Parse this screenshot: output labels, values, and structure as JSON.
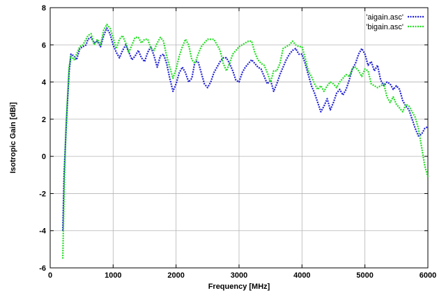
{
  "chart_data": {
    "type": "line",
    "title": "",
    "xlabel": "Frequency [MHz]",
    "ylabel": "Isotropic Gain [dBi]",
    "xlim": [
      0,
      6000
    ],
    "ylim": [
      -6,
      8
    ],
    "xticks": [
      0,
      1000,
      2000,
      3000,
      4000,
      5000,
      6000
    ],
    "yticks": [
      -6,
      -4,
      -2,
      0,
      2,
      4,
      6,
      8
    ],
    "grid": true,
    "legend_position": "top-right",
    "series": [
      {
        "name": "'aigain.asc'",
        "color": "#1f1fd6",
        "points": [
          [
            200,
            -4.0
          ],
          [
            220,
            -1.0
          ],
          [
            260,
            2.0
          ],
          [
            300,
            4.5
          ],
          [
            330,
            5.5
          ],
          [
            380,
            5.4
          ],
          [
            420,
            5.2
          ],
          [
            470,
            5.8
          ],
          [
            520,
            5.9
          ],
          [
            570,
            6.0
          ],
          [
            600,
            6.3
          ],
          [
            650,
            6.4
          ],
          [
            700,
            6.1
          ],
          [
            750,
            6.2
          ],
          [
            800,
            5.9
          ],
          [
            850,
            6.5
          ],
          [
            900,
            6.9
          ],
          [
            950,
            6.6
          ],
          [
            1000,
            6.0
          ],
          [
            1050,
            5.6
          ],
          [
            1100,
            5.3
          ],
          [
            1150,
            5.7
          ],
          [
            1200,
            6.0
          ],
          [
            1250,
            5.6
          ],
          [
            1300,
            5.2
          ],
          [
            1350,
            5.4
          ],
          [
            1400,
            5.7
          ],
          [
            1450,
            5.3
          ],
          [
            1500,
            5.1
          ],
          [
            1550,
            5.6
          ],
          [
            1600,
            5.9
          ],
          [
            1650,
            5.4
          ],
          [
            1700,
            4.8
          ],
          [
            1750,
            5.4
          ],
          [
            1800,
            5.5
          ],
          [
            1850,
            5.0
          ],
          [
            1900,
            4.2
          ],
          [
            1950,
            3.5
          ],
          [
            2000,
            3.9
          ],
          [
            2050,
            4.5
          ],
          [
            2100,
            4.8
          ],
          [
            2150,
            4.5
          ],
          [
            2200,
            4.0
          ],
          [
            2250,
            4.2
          ],
          [
            2300,
            5.1
          ],
          [
            2350,
            5.1
          ],
          [
            2400,
            4.5
          ],
          [
            2450,
            3.9
          ],
          [
            2500,
            3.7
          ],
          [
            2550,
            4.0
          ],
          [
            2600,
            4.5
          ],
          [
            2650,
            4.8
          ],
          [
            2700,
            5.1
          ],
          [
            2750,
            5.3
          ],
          [
            2800,
            5.3
          ],
          [
            2850,
            5.0
          ],
          [
            2900,
            4.6
          ],
          [
            2950,
            4.1
          ],
          [
            3000,
            4.0
          ],
          [
            3050,
            4.5
          ],
          [
            3100,
            4.8
          ],
          [
            3150,
            5.0
          ],
          [
            3200,
            5.2
          ],
          [
            3250,
            5.0
          ],
          [
            3300,
            4.8
          ],
          [
            3350,
            4.7
          ],
          [
            3400,
            4.3
          ],
          [
            3450,
            3.9
          ],
          [
            3500,
            4.1
          ],
          [
            3550,
            3.5
          ],
          [
            3600,
            3.9
          ],
          [
            3650,
            4.4
          ],
          [
            3700,
            4.8
          ],
          [
            3750,
            5.2
          ],
          [
            3800,
            5.5
          ],
          [
            3850,
            5.7
          ],
          [
            3900,
            5.8
          ],
          [
            3950,
            5.5
          ],
          [
            4000,
            5.5
          ],
          [
            4050,
            5.0
          ],
          [
            4100,
            4.4
          ],
          [
            4150,
            3.8
          ],
          [
            4200,
            3.4
          ],
          [
            4250,
            2.9
          ],
          [
            4300,
            2.4
          ],
          [
            4350,
            2.7
          ],
          [
            4400,
            3.1
          ],
          [
            4450,
            2.5
          ],
          [
            4500,
            2.9
          ],
          [
            4550,
            3.4
          ],
          [
            4600,
            3.6
          ],
          [
            4650,
            3.3
          ],
          [
            4700,
            3.6
          ],
          [
            4750,
            4.1
          ],
          [
            4800,
            4.7
          ],
          [
            4850,
            5.0
          ],
          [
            4900,
            5.5
          ],
          [
            4950,
            5.8
          ],
          [
            5000,
            5.5
          ],
          [
            5050,
            4.9
          ],
          [
            5100,
            5.1
          ],
          [
            5150,
            4.6
          ],
          [
            5200,
            4.9
          ],
          [
            5250,
            4.1
          ],
          [
            5300,
            3.8
          ],
          [
            5350,
            4.0
          ],
          [
            5400,
            3.9
          ],
          [
            5450,
            3.6
          ],
          [
            5500,
            3.8
          ],
          [
            5550,
            3.6
          ],
          [
            5600,
            3.0
          ],
          [
            5650,
            2.7
          ],
          [
            5700,
            2.5
          ],
          [
            5750,
            2.0
          ],
          [
            5800,
            1.5
          ],
          [
            5850,
            1.1
          ],
          [
            5900,
            1.2
          ],
          [
            5950,
            1.5
          ],
          [
            6000,
            1.6
          ]
        ]
      },
      {
        "name": "'bigain.asc'",
        "color": "#22dd22",
        "points": [
          [
            200,
            -5.5
          ],
          [
            220,
            -2.0
          ],
          [
            250,
            1.5
          ],
          [
            300,
            4.8
          ],
          [
            330,
            5.4
          ],
          [
            380,
            5.2
          ],
          [
            420,
            5.5
          ],
          [
            470,
            5.9
          ],
          [
            520,
            6.0
          ],
          [
            570,
            6.3
          ],
          [
            600,
            6.5
          ],
          [
            650,
            6.6
          ],
          [
            700,
            6.0
          ],
          [
            750,
            6.3
          ],
          [
            800,
            6.0
          ],
          [
            850,
            6.8
          ],
          [
            900,
            7.1
          ],
          [
            950,
            6.9
          ],
          [
            1000,
            6.4
          ],
          [
            1050,
            5.8
          ],
          [
            1100,
            6.3
          ],
          [
            1150,
            6.5
          ],
          [
            1200,
            6.1
          ],
          [
            1250,
            5.6
          ],
          [
            1300,
            6.0
          ],
          [
            1350,
            6.4
          ],
          [
            1400,
            6.4
          ],
          [
            1450,
            6.1
          ],
          [
            1500,
            6.3
          ],
          [
            1550,
            6.3
          ],
          [
            1600,
            5.8
          ],
          [
            1650,
            5.7
          ],
          [
            1700,
            6.1
          ],
          [
            1750,
            6.4
          ],
          [
            1800,
            6.2
          ],
          [
            1850,
            5.4
          ],
          [
            1900,
            4.8
          ],
          [
            1950,
            4.2
          ],
          [
            2000,
            4.7
          ],
          [
            2050,
            5.4
          ],
          [
            2100,
            5.9
          ],
          [
            2150,
            6.3
          ],
          [
            2200,
            6.0
          ],
          [
            2250,
            5.2
          ],
          [
            2300,
            5.0
          ],
          [
            2350,
            5.5
          ],
          [
            2400,
            5.9
          ],
          [
            2450,
            6.1
          ],
          [
            2500,
            6.3
          ],
          [
            2550,
            6.3
          ],
          [
            2600,
            6.3
          ],
          [
            2650,
            6.0
          ],
          [
            2700,
            5.7
          ],
          [
            2750,
            5.0
          ],
          [
            2800,
            4.6
          ],
          [
            2850,
            5.0
          ],
          [
            2900,
            5.5
          ],
          [
            2950,
            5.7
          ],
          [
            3000,
            5.9
          ],
          [
            3050,
            6.0
          ],
          [
            3100,
            6.1
          ],
          [
            3150,
            6.2
          ],
          [
            3200,
            6.2
          ],
          [
            3250,
            5.6
          ],
          [
            3300,
            5.2
          ],
          [
            3350,
            5.0
          ],
          [
            3400,
            4.9
          ],
          [
            3450,
            4.5
          ],
          [
            3500,
            4.0
          ],
          [
            3550,
            4.6
          ],
          [
            3600,
            4.6
          ],
          [
            3650,
            5.0
          ],
          [
            3700,
            5.8
          ],
          [
            3750,
            5.9
          ],
          [
            3800,
            6.0
          ],
          [
            3850,
            6.2
          ],
          [
            3900,
            6.0
          ],
          [
            3950,
            5.9
          ],
          [
            4000,
            5.9
          ],
          [
            4050,
            5.3
          ],
          [
            4100,
            4.6
          ],
          [
            4150,
            4.3
          ],
          [
            4200,
            3.9
          ],
          [
            4250,
            3.6
          ],
          [
            4300,
            3.8
          ],
          [
            4350,
            3.5
          ],
          [
            4400,
            3.8
          ],
          [
            4450,
            4.0
          ],
          [
            4500,
            3.9
          ],
          [
            4550,
            3.7
          ],
          [
            4600,
            4.0
          ],
          [
            4650,
            4.2
          ],
          [
            4700,
            4.4
          ],
          [
            4750,
            4.3
          ],
          [
            4800,
            4.7
          ],
          [
            4850,
            4.8
          ],
          [
            4900,
            4.6
          ],
          [
            4950,
            4.3
          ],
          [
            5000,
            4.7
          ],
          [
            5050,
            4.6
          ],
          [
            5100,
            3.9
          ],
          [
            5150,
            3.8
          ],
          [
            5200,
            3.7
          ],
          [
            5250,
            3.8
          ],
          [
            5300,
            3.9
          ],
          [
            5350,
            3.2
          ],
          [
            5400,
            2.9
          ],
          [
            5450,
            3.2
          ],
          [
            5500,
            2.8
          ],
          [
            5550,
            2.6
          ],
          [
            5600,
            2.4
          ],
          [
            5650,
            2.8
          ],
          [
            5700,
            2.7
          ],
          [
            5750,
            2.4
          ],
          [
            5800,
            2.1
          ],
          [
            5850,
            1.5
          ],
          [
            5900,
            0.5
          ],
          [
            5950,
            -0.5
          ],
          [
            6000,
            -1.1
          ]
        ]
      }
    ]
  }
}
